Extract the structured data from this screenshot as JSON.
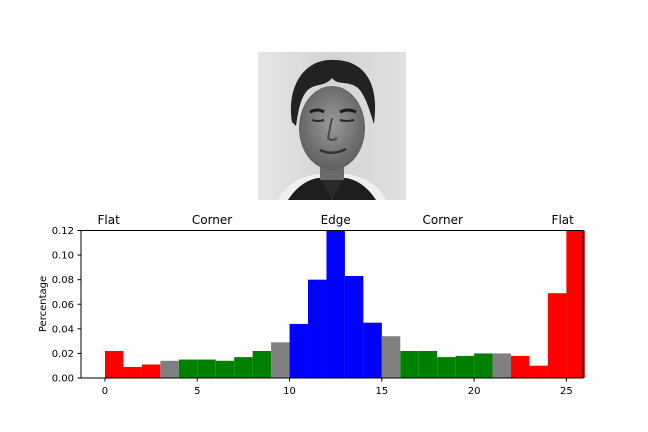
{
  "chart_data": {
    "type": "bar",
    "ylabel": "Percentage",
    "xlabel": "",
    "title": "",
    "xlim": [
      -1.3,
      25.9
    ],
    "ylim": [
      0,
      0.12
    ],
    "x_ticks": [
      0,
      5,
      10,
      15,
      20,
      25
    ],
    "y_ticks": [
      0.0,
      0.02,
      0.04,
      0.06,
      0.08,
      0.1,
      0.12
    ],
    "y_tick_labels": [
      "0.00",
      "0.02",
      "0.04",
      "0.06",
      "0.08",
      "0.10",
      "0.12"
    ],
    "grid": false,
    "region_labels": [
      {
        "text": "Flat",
        "x": 0.2
      },
      {
        "text": "Corner",
        "x": 5.8
      },
      {
        "text": "Edge",
        "x": 12.5
      },
      {
        "text": "Corner",
        "x": 18.3
      },
      {
        "text": "Flat",
        "x": 24.8
      }
    ],
    "bars": [
      {
        "x": 0.5,
        "value": 0.022,
        "color": "#ff0000"
      },
      {
        "x": 1.5,
        "value": 0.009,
        "color": "#ff0000"
      },
      {
        "x": 2.5,
        "value": 0.011,
        "color": "#ff0000"
      },
      {
        "x": 3.5,
        "value": 0.014,
        "color": "#808080"
      },
      {
        "x": 4.5,
        "value": 0.015,
        "color": "#008000"
      },
      {
        "x": 5.5,
        "value": 0.015,
        "color": "#008000"
      },
      {
        "x": 6.5,
        "value": 0.014,
        "color": "#008000"
      },
      {
        "x": 7.5,
        "value": 0.017,
        "color": "#008000"
      },
      {
        "x": 8.5,
        "value": 0.022,
        "color": "#008000"
      },
      {
        "x": 9.5,
        "value": 0.029,
        "color": "#808080"
      },
      {
        "x": 10.5,
        "value": 0.044,
        "color": "#0000ff"
      },
      {
        "x": 11.5,
        "value": 0.08,
        "color": "#0000ff"
      },
      {
        "x": 12.5,
        "value": 0.12,
        "color": "#0000ff"
      },
      {
        "x": 13.5,
        "value": 0.083,
        "color": "#0000ff"
      },
      {
        "x": 14.5,
        "value": 0.045,
        "color": "#0000ff"
      },
      {
        "x": 15.5,
        "value": 0.034,
        "color": "#808080"
      },
      {
        "x": 16.5,
        "value": 0.022,
        "color": "#008000"
      },
      {
        "x": 17.5,
        "value": 0.022,
        "color": "#008000"
      },
      {
        "x": 18.5,
        "value": 0.017,
        "color": "#008000"
      },
      {
        "x": 19.5,
        "value": 0.018,
        "color": "#008000"
      },
      {
        "x": 20.5,
        "value": 0.02,
        "color": "#008000"
      },
      {
        "x": 21.5,
        "value": 0.02,
        "color": "#808080"
      },
      {
        "x": 22.5,
        "value": 0.018,
        "color": "#ff0000"
      },
      {
        "x": 23.5,
        "value": 0.01,
        "color": "#ff0000"
      },
      {
        "x": 24.5,
        "value": 0.069,
        "color": "#ff0000"
      },
      {
        "x": 25.5,
        "value": 0.12,
        "color": "#ff0000"
      }
    ]
  }
}
